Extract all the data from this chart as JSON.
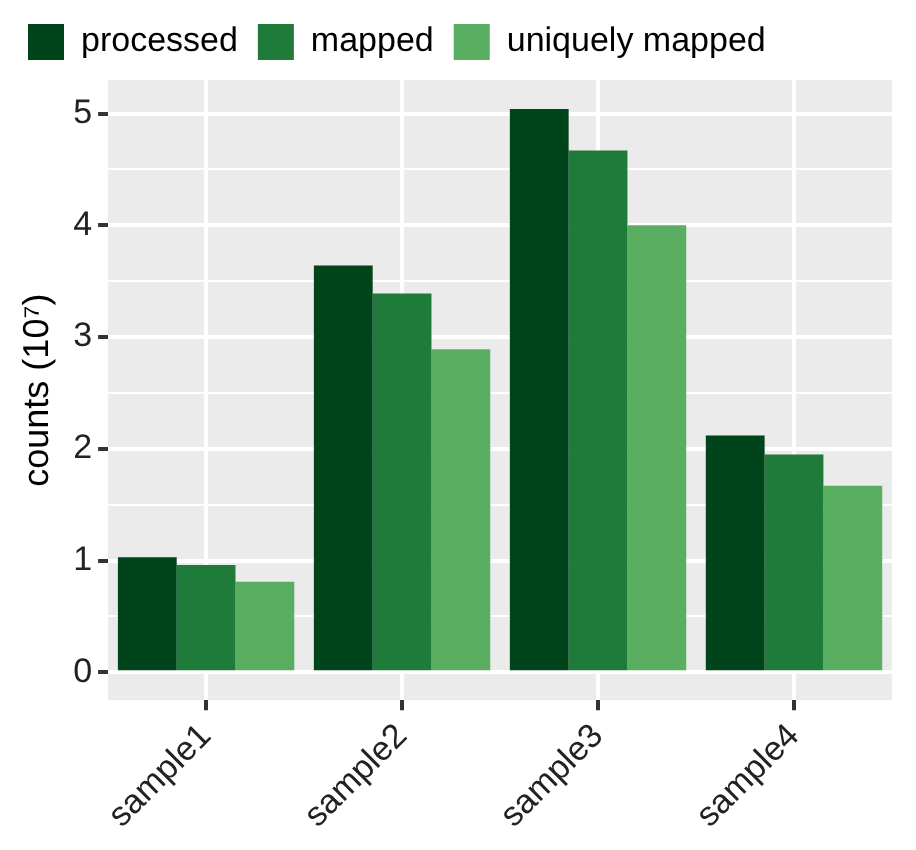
{
  "chart_data": {
    "type": "bar",
    "ylabel": "counts (10⁷)",
    "categories": [
      "sample1",
      "sample2",
      "sample3",
      "sample4"
    ],
    "series": [
      {
        "name": "processed",
        "color": "#00441b",
        "values": [
          1.03,
          3.64,
          5.04,
          2.12
        ]
      },
      {
        "name": "mapped",
        "color": "#1e7b39",
        "values": [
          0.96,
          3.39,
          4.67,
          1.95
        ]
      },
      {
        "name": "uniquely mapped",
        "color": "#5aae61",
        "values": [
          0.81,
          2.89,
          4.0,
          1.67
        ]
      }
    ],
    "ylim": [
      -0.25,
      5.3
    ],
    "yticks": [
      0,
      {
        "value": 0.5,
        "label": null
      },
      1,
      {
        "value": 1.5,
        "label": null
      },
      2,
      {
        "value": 2.5,
        "label": null
      },
      3,
      {
        "value": 3.5,
        "label": null
      },
      4,
      {
        "value": 4.5,
        "label": null
      },
      5
    ],
    "grid": true,
    "legend": "top"
  }
}
